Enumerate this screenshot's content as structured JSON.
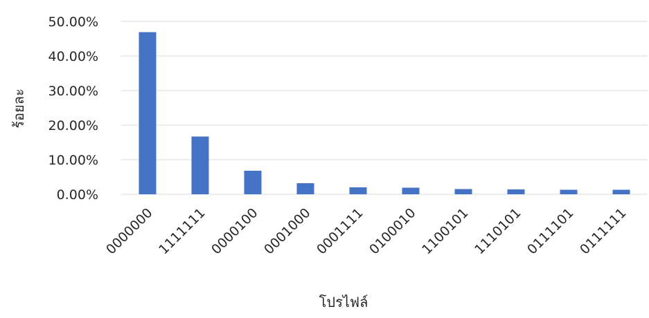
{
  "chart_data": {
    "type": "bar",
    "title": "",
    "xlabel": "โปรไฟล์",
    "ylabel": "ร้อยละ",
    "categories": [
      "0000000",
      "1111111",
      "0000100",
      "0001000",
      "0001111",
      "0100010",
      "1100101",
      "1110101",
      "0111101",
      "0111111"
    ],
    "series": [
      {
        "values": [
          46.9,
          16.7,
          6.8,
          3.2,
          2.0,
          1.9,
          1.5,
          1.4,
          1.3,
          1.3
        ]
      }
    ],
    "ylim": [
      0,
      50
    ],
    "yticks": [
      0,
      10,
      20,
      30,
      40,
      50
    ],
    "ytick_labels": [
      "0.00%",
      "10.00%",
      "20.00%",
      "30.00%",
      "40.00%",
      "50.00%"
    ],
    "grid": true,
    "legend": "none",
    "colors": {
      "bar": "#4472C4",
      "grid": "#D9D9D9",
      "text": "#262626"
    }
  }
}
